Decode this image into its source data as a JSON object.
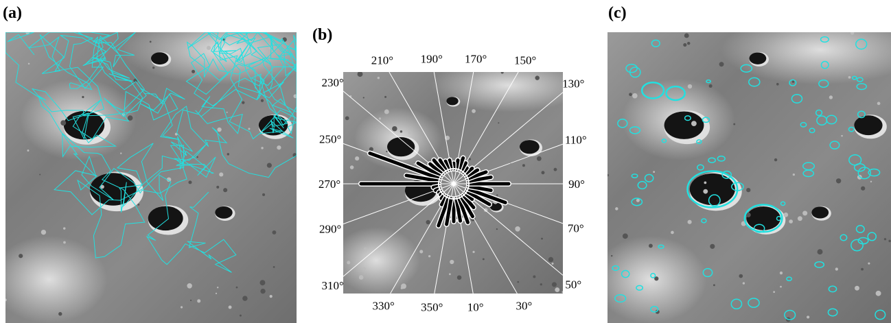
{
  "panels": [
    {
      "label": "(a)"
    },
    {
      "label": "(b)"
    },
    {
      "label": "(c)"
    }
  ],
  "rose": {
    "ticks": [
      {
        "value": 10,
        "label": "10°"
      },
      {
        "value": 30,
        "label": "30°"
      },
      {
        "value": 50,
        "label": "50°"
      },
      {
        "value": 70,
        "label": "70°"
      },
      {
        "value": 90,
        "label": "90°"
      },
      {
        "value": 110,
        "label": "110°"
      },
      {
        "value": 130,
        "label": "130°"
      },
      {
        "value": 150,
        "label": "150°"
      },
      {
        "value": 170,
        "label": "170°"
      },
      {
        "value": 190,
        "label": "190°"
      },
      {
        "value": 210,
        "label": "210°"
      },
      {
        "value": 230,
        "label": "230°"
      },
      {
        "value": 250,
        "label": "250°"
      },
      {
        "value": 270,
        "label": "270°"
      },
      {
        "value": 290,
        "label": "290°"
      },
      {
        "value": 310,
        "label": "310°"
      },
      {
        "value": 330,
        "label": "330°"
      },
      {
        "value": 350,
        "label": "350°"
      }
    ],
    "angles": [
      0,
      10,
      20,
      30,
      40,
      50,
      60,
      70,
      80,
      90,
      100,
      110,
      120,
      130,
      140,
      150,
      160,
      170,
      180,
      190,
      200,
      210,
      220,
      230,
      240,
      250,
      260,
      270,
      280,
      290,
      300,
      310,
      320,
      330,
      340,
      350
    ],
    "lengths": [
      55,
      55,
      60,
      55,
      45,
      35,
      60,
      80,
      55,
      80,
      55,
      50,
      40,
      35,
      30,
      35,
      40,
      35,
      30,
      35,
      35,
      40,
      45,
      45,
      60,
      130,
      70,
      135,
      30,
      28,
      25,
      25,
      28,
      35,
      65,
      60
    ]
  }
}
